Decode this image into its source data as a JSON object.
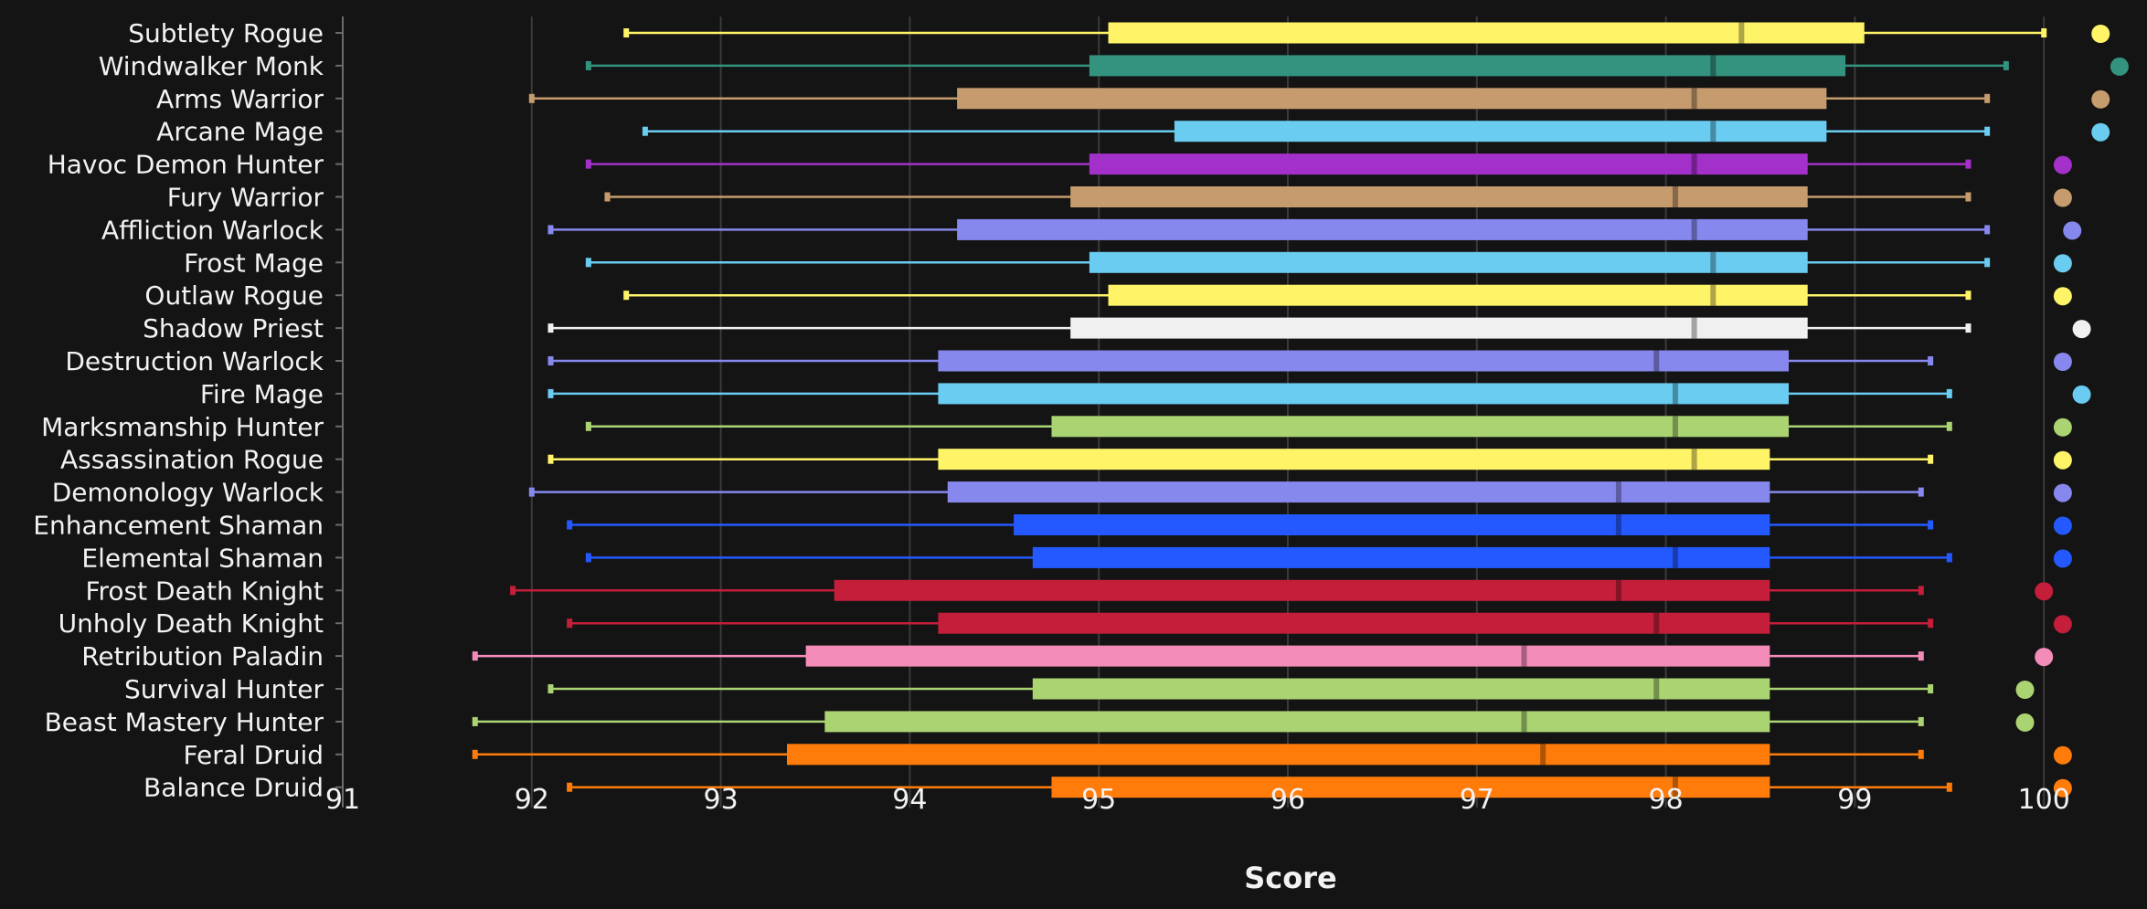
{
  "chart_data": {
    "type": "boxplot",
    "title": "",
    "xlabel": "Score",
    "ylabel": "",
    "xlim": [
      91,
      100.5
    ],
    "xticks": [
      91,
      92,
      93,
      94,
      95,
      96,
      97,
      98,
      99,
      100
    ],
    "grid": "vertical",
    "legend": "none",
    "series": [
      {
        "name": "Subtlety Rogue",
        "color": "#FFF468",
        "min": 92.5,
        "q1": 95.05,
        "median": 98.4,
        "q3": 99.05,
        "max": 100.0,
        "max_score": 100.3
      },
      {
        "name": "Windwalker Monk",
        "color": "#33937F",
        "min": 92.3,
        "q1": 94.95,
        "median": 98.25,
        "q3": 98.95,
        "max": 99.8,
        "max_score": 100.4
      },
      {
        "name": "Arms Warrior",
        "color": "#C69B6D",
        "min": 92.0,
        "q1": 94.25,
        "median": 98.15,
        "q3": 98.85,
        "max": 99.7,
        "max_score": 100.3
      },
      {
        "name": "Arcane Mage",
        "color": "#69CCF0",
        "min": 92.6,
        "q1": 95.4,
        "median": 98.25,
        "q3": 98.85,
        "max": 99.7,
        "max_score": 100.3
      },
      {
        "name": "Havoc Demon Hunter",
        "color": "#A330C9",
        "min": 92.3,
        "q1": 94.95,
        "median": 98.15,
        "q3": 98.75,
        "max": 99.6,
        "max_score": 100.1
      },
      {
        "name": "Fury Warrior",
        "color": "#C69B6D",
        "min": 92.4,
        "q1": 94.85,
        "median": 98.05,
        "q3": 98.75,
        "max": 99.6,
        "max_score": 100.1
      },
      {
        "name": "Affliction Warlock",
        "color": "#8788EE",
        "min": 92.1,
        "q1": 94.25,
        "median": 98.15,
        "q3": 98.75,
        "max": 99.7,
        "max_score": 100.15
      },
      {
        "name": "Frost Mage",
        "color": "#69CCF0",
        "min": 92.3,
        "q1": 94.95,
        "median": 98.25,
        "q3": 98.75,
        "max": 99.7,
        "max_score": 100.1
      },
      {
        "name": "Outlaw Rogue",
        "color": "#FFF468",
        "min": 92.5,
        "q1": 95.05,
        "median": 98.25,
        "q3": 98.75,
        "max": 99.6,
        "max_score": 100.1
      },
      {
        "name": "Shadow Priest",
        "color": "#F0F0F0",
        "min": 92.1,
        "q1": 94.85,
        "median": 98.15,
        "q3": 98.75,
        "max": 99.6,
        "max_score": 100.2
      },
      {
        "name": "Destruction Warlock",
        "color": "#8788EE",
        "min": 92.1,
        "q1": 94.15,
        "median": 97.95,
        "q3": 98.65,
        "max": 99.4,
        "max_score": 100.1
      },
      {
        "name": "Fire Mage",
        "color": "#69CCF0",
        "min": 92.1,
        "q1": 94.15,
        "median": 98.05,
        "q3": 98.65,
        "max": 99.5,
        "max_score": 100.2
      },
      {
        "name": "Marksmanship Hunter",
        "color": "#AAD372",
        "min": 92.3,
        "q1": 94.75,
        "median": 98.05,
        "q3": 98.65,
        "max": 99.5,
        "max_score": 100.1
      },
      {
        "name": "Assassination Rogue",
        "color": "#FFF468",
        "min": 92.1,
        "q1": 94.15,
        "median": 98.15,
        "q3": 98.55,
        "max": 99.4,
        "max_score": 100.1
      },
      {
        "name": "Demonology Warlock",
        "color": "#8788EE",
        "min": 92.0,
        "q1": 94.2,
        "median": 97.75,
        "q3": 98.55,
        "max": 99.35,
        "max_score": 100.1
      },
      {
        "name": "Enhancement Shaman",
        "color": "#2459FF",
        "min": 92.2,
        "q1": 94.55,
        "median": 97.75,
        "q3": 98.55,
        "max": 99.4,
        "max_score": 100.1
      },
      {
        "name": "Elemental Shaman",
        "color": "#2459FF",
        "min": 92.3,
        "q1": 94.65,
        "median": 98.05,
        "q3": 98.55,
        "max": 99.5,
        "max_score": 100.1
      },
      {
        "name": "Frost Death Knight",
        "color": "#C41E3A",
        "min": 91.9,
        "q1": 93.6,
        "median": 97.75,
        "q3": 98.55,
        "max": 99.35,
        "max_score": 100.0
      },
      {
        "name": "Unholy Death Knight",
        "color": "#C41E3A",
        "min": 92.2,
        "q1": 94.15,
        "median": 97.95,
        "q3": 98.55,
        "max": 99.4,
        "max_score": 100.1
      },
      {
        "name": "Retribution Paladin",
        "color": "#F48CBA",
        "min": 91.7,
        "q1": 93.45,
        "median": 97.25,
        "q3": 98.55,
        "max": 99.35,
        "max_score": 100.0
      },
      {
        "name": "Survival Hunter",
        "color": "#AAD372",
        "min": 92.1,
        "q1": 94.65,
        "median": 97.95,
        "q3": 98.55,
        "max": 99.4,
        "max_score": 99.9
      },
      {
        "name": "Beast Mastery Hunter",
        "color": "#AAD372",
        "min": 91.7,
        "q1": 93.55,
        "median": 97.25,
        "q3": 98.55,
        "max": 99.35,
        "max_score": 99.9
      },
      {
        "name": "Feral Druid",
        "color": "#FF7C0A",
        "min": 91.7,
        "q1": 93.35,
        "median": 97.35,
        "q3": 98.55,
        "max": 99.35,
        "max_score": 100.1
      },
      {
        "name": "Balance Druid",
        "color": "#FF7C0A",
        "min": 92.2,
        "q1": 94.75,
        "median": 98.05,
        "q3": 98.55,
        "max": 99.5,
        "max_score": 100.1
      }
    ]
  }
}
